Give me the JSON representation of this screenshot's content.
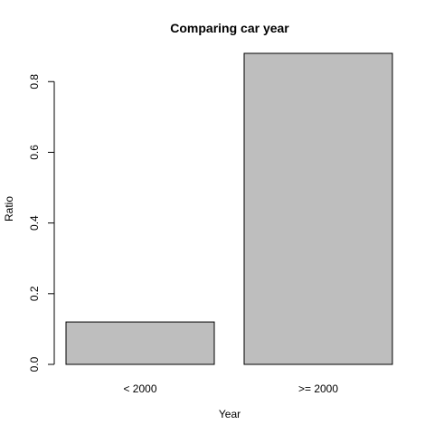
{
  "chart_data": {
    "type": "bar",
    "title": "Comparing car year",
    "xlabel": "Year",
    "ylabel": "Ratio",
    "categories": [
      "< 2000",
      ">= 2000"
    ],
    "values": [
      0.12,
      0.88
    ],
    "ylim": [
      0,
      0.88
    ],
    "yticks": [
      0.0,
      0.2,
      0.4,
      0.6,
      0.8
    ],
    "ytick_labels": [
      "0.0",
      "0.2",
      "0.4",
      "0.6",
      "0.8"
    ],
    "grid": false,
    "legend": "none",
    "colors": {
      "bar_fill": "#bebebe",
      "bar_stroke": "#000000",
      "axis": "#000000",
      "background": "#ffffff"
    }
  }
}
